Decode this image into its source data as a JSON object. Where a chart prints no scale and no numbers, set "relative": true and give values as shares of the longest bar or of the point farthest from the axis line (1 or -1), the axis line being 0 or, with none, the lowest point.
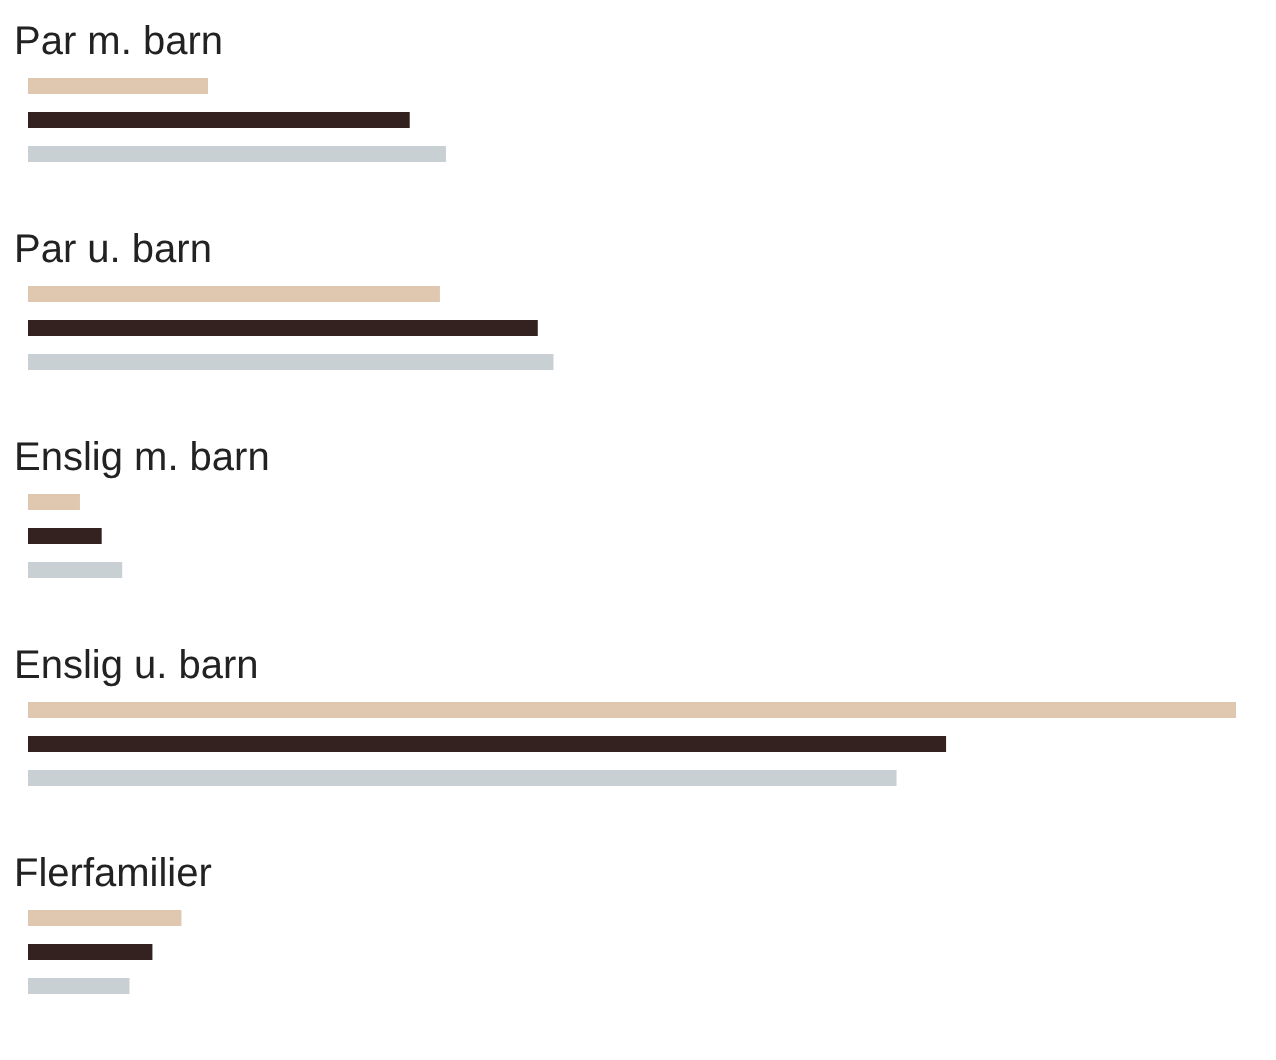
{
  "chart_data": {
    "type": "bar",
    "orientation": "horizontal",
    "relative": true,
    "categories": [
      "Par m. barn",
      "Par u. barn",
      "Enslig m. barn",
      "Enslig u. barn",
      "Flerfamilier"
    ],
    "series": [
      {
        "color": "#dfc7b0",
        "values": [
          0.149,
          0.341,
          0.043,
          1,
          0.127
        ]
      },
      {
        "color": "#33221f",
        "values": [
          0.316,
          0.422,
          0.061,
          0.76,
          0.103
        ]
      },
      {
        "color": "#c8d0d4",
        "values": [
          0.346,
          0.435,
          0.078,
          0.719,
          0.084
        ]
      }
    ]
  }
}
